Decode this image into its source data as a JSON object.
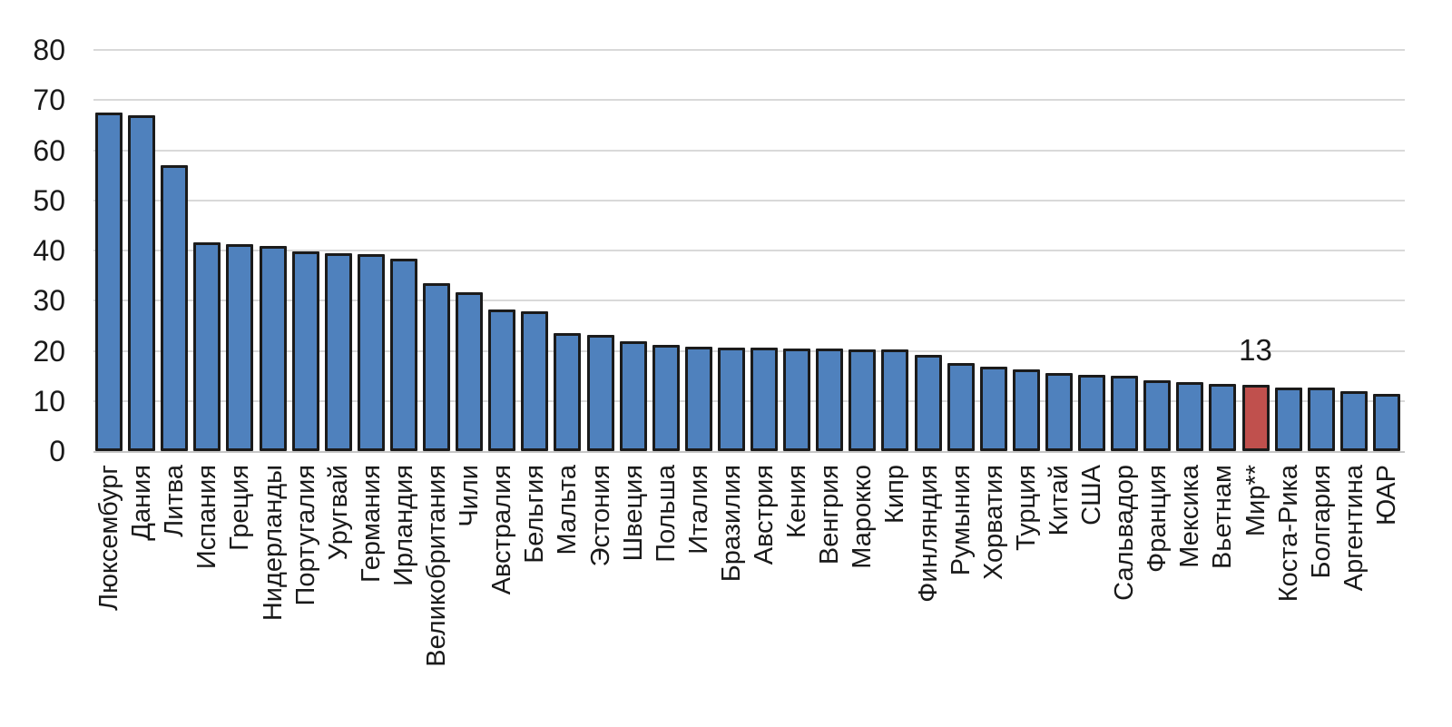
{
  "chart_data": {
    "type": "bar",
    "title": "",
    "xlabel": "",
    "ylabel": "",
    "legend": false,
    "grid": true,
    "ylim": [
      0,
      80
    ],
    "yticks": [
      0,
      10,
      20,
      30,
      40,
      50,
      60,
      70,
      80
    ],
    "categories": [
      "Люксембург",
      "Дания",
      "Литва",
      "Испания",
      "Греция",
      "Нидерланды",
      "Португалия",
      "Уругвай",
      "Германия",
      "Ирландия",
      "Великобритания",
      "Чили",
      "Австралия",
      "Бельгия",
      "Мальта",
      "Эстония",
      "Швеция",
      "Польша",
      "Италия",
      "Бразилия",
      "Австрия",
      "Кения",
      "Венгрия",
      "Марокко",
      "Кипр",
      "Финляндия",
      "Румыния",
      "Хорватия",
      "Турция",
      "Китай",
      "США",
      "Сальвадор",
      "Франция",
      "Мексика",
      "Вьетнам",
      "Мир**",
      "Коста-Рика",
      "Болгария",
      "Аргентина",
      "ЮАР"
    ],
    "values": [
      67.5,
      67,
      57,
      41.6,
      41.2,
      40.9,
      39.8,
      39.5,
      39.2,
      38.4,
      33.5,
      31.6,
      28.2,
      27.9,
      23.6,
      23.2,
      21.9,
      21.1,
      20.8,
      20.7,
      20.6,
      20.4,
      20.4,
      20.3,
      20.2,
      19.1,
      17.6,
      16.9,
      16.2,
      15.6,
      15.2,
      15.1,
      14.1,
      13.7,
      13.4,
      13.3,
      12.7,
      12.6,
      11.9,
      11.4
    ],
    "highlight_index": 35,
    "annotation": {
      "text": "13",
      "category": "Мир**",
      "category_index": 35
    },
    "colors": {
      "bar": "#4F81BD",
      "highlight": "#C0504D",
      "bar_border": "#1B1B1B",
      "gridline": "#D9D9D9",
      "axis_line": "#C6C6C6",
      "text": "#1A1A1A"
    }
  }
}
